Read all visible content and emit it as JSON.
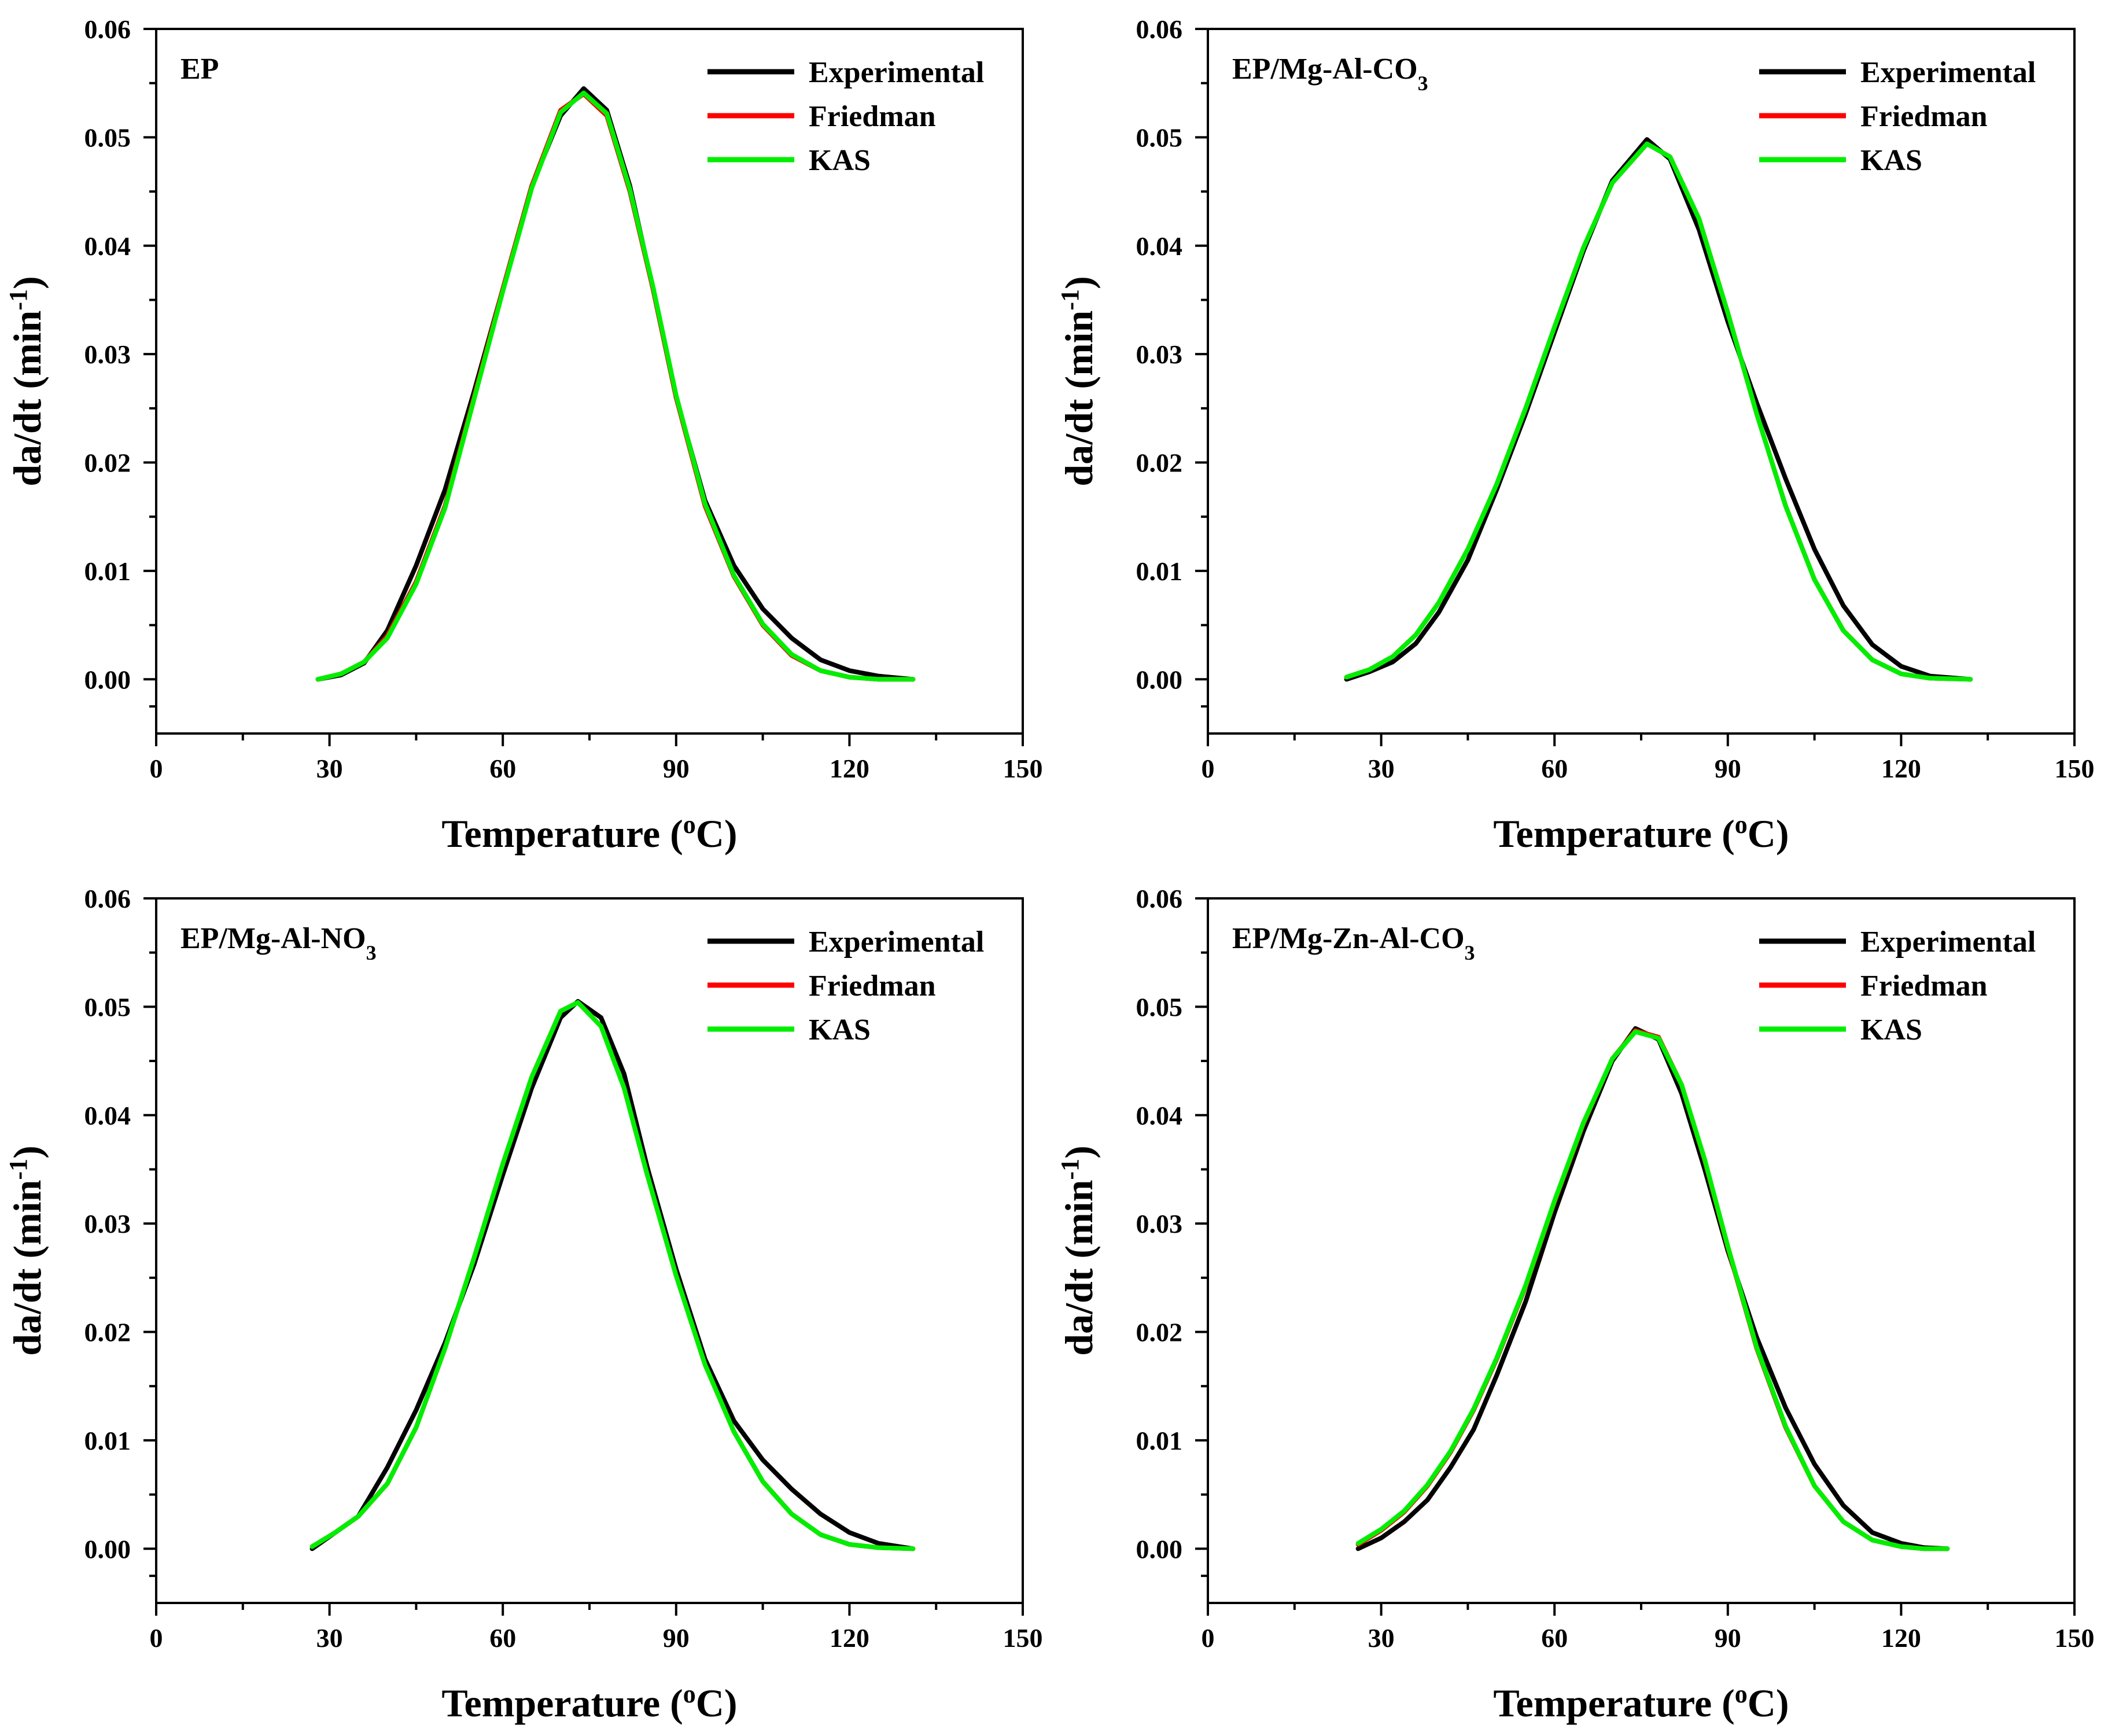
{
  "colors": {
    "Experimental": "#000000",
    "Friedman": "#ff0000",
    "KAS": "#00ee00"
  },
  "chart_data": [
    {
      "type": "line",
      "panel_label": "EP",
      "label_sub": "",
      "xlabel": "Temperature (oC)",
      "xlabel_parts": [
        "Temperature (",
        "o",
        "C)"
      ],
      "ylabel": "da/dt (min-1)",
      "ylabel_parts": [
        "da/dt (min",
        "-1",
        ")"
      ],
      "xlim": [
        0,
        150
      ],
      "ylim": [
        -0.005,
        0.06
      ],
      "xticks": [
        0,
        30,
        60,
        90,
        120,
        150
      ],
      "xtick_labels": [
        "0",
        "30",
        "60",
        "90",
        "120",
        "150"
      ],
      "yticks": [
        0,
        0.01,
        0.02,
        0.03,
        0.04,
        0.05,
        0.06
      ],
      "ytick_labels": [
        "0.00",
        "0.01",
        "0.02",
        "0.03",
        "0.04",
        "0.05",
        "0.06"
      ],
      "legend": [
        "Experimental",
        "Friedman",
        "KAS"
      ],
      "legend_position": "top-right",
      "series": [
        {
          "name": "Experimental",
          "x": [
            28,
            32,
            36,
            40,
            45,
            50,
            55,
            60,
            65,
            70,
            74,
            78,
            82,
            86,
            90,
            95,
            100,
            105,
            110,
            115,
            120,
            125,
            131
          ],
          "values": [
            0,
            0.0004,
            0.0015,
            0.0045,
            0.0105,
            0.0175,
            0.0265,
            0.036,
            0.0455,
            0.052,
            0.0545,
            0.0525,
            0.0455,
            0.036,
            0.026,
            0.0165,
            0.0105,
            0.0065,
            0.0038,
            0.0018,
            0.0008,
            0.0003,
            0
          ]
        },
        {
          "name": "Friedman",
          "x": [
            28,
            32,
            36,
            40,
            45,
            50,
            55,
            60,
            65,
            70,
            74,
            78,
            82,
            86,
            90,
            95,
            100,
            105,
            110,
            115,
            120,
            125,
            131
          ],
          "values": [
            0,
            0.0005,
            0.0016,
            0.004,
            0.009,
            0.016,
            0.026,
            0.036,
            0.0455,
            0.0525,
            0.054,
            0.052,
            0.045,
            0.036,
            0.026,
            0.016,
            0.0095,
            0.005,
            0.0022,
            0.0008,
            0.0002,
            0,
            0
          ]
        },
        {
          "name": "KAS",
          "x": [
            28,
            32,
            36,
            40,
            45,
            50,
            55,
            60,
            65,
            70,
            74,
            78,
            82,
            86,
            90,
            95,
            100,
            105,
            110,
            115,
            120,
            125,
            131
          ],
          "values": [
            0,
            0.0005,
            0.0016,
            0.0038,
            0.0088,
            0.0158,
            0.0258,
            0.0358,
            0.0453,
            0.0523,
            0.0541,
            0.0522,
            0.0452,
            0.0362,
            0.0262,
            0.0162,
            0.0096,
            0.0051,
            0.0023,
            0.0008,
            0.0002,
            0,
            0
          ]
        }
      ]
    },
    {
      "type": "line",
      "panel_label": "EP/Mg-Al-CO",
      "label_sub": "3",
      "xlabel": "Temperature (oC)",
      "xlabel_parts": [
        "Temperature (",
        "o",
        "C)"
      ],
      "ylabel": "da/dt (min-1)",
      "ylabel_parts": [
        "da/dt (min",
        "-1",
        ")"
      ],
      "xlim": [
        0,
        150
      ],
      "ylim": [
        -0.005,
        0.06
      ],
      "xticks": [
        0,
        30,
        60,
        90,
        120,
        150
      ],
      "xtick_labels": [
        "0",
        "30",
        "60",
        "90",
        "120",
        "150"
      ],
      "yticks": [
        0,
        0.01,
        0.02,
        0.03,
        0.04,
        0.05,
        0.06
      ],
      "ytick_labels": [
        "0.00",
        "0.01",
        "0.02",
        "0.03",
        "0.04",
        "0.05",
        "0.06"
      ],
      "legend": [
        "Experimental",
        "Friedman",
        "KAS"
      ],
      "legend_position": "top-right",
      "series": [
        {
          "name": "Experimental",
          "x": [
            24,
            28,
            32,
            36,
            40,
            45,
            50,
            55,
            60,
            65,
            70,
            76,
            80,
            85,
            90,
            95,
            100,
            105,
            110,
            115,
            120,
            125,
            132
          ],
          "values": [
            0,
            0.0007,
            0.0016,
            0.0033,
            0.0062,
            0.011,
            0.0175,
            0.0245,
            0.032,
            0.0395,
            0.046,
            0.0498,
            0.048,
            0.0415,
            0.033,
            0.0255,
            0.0185,
            0.012,
            0.0068,
            0.0032,
            0.0012,
            0.0003,
            0
          ]
        },
        {
          "name": "Friedman",
          "x": [
            24,
            28,
            32,
            36,
            40,
            45,
            50,
            55,
            60,
            65,
            70,
            76,
            80,
            85,
            90,
            95,
            100,
            105,
            110,
            115,
            120,
            125,
            132
          ],
          "values": [
            0.0002,
            0.0009,
            0.0021,
            0.0041,
            0.0071,
            0.012,
            0.018,
            0.025,
            0.0325,
            0.0398,
            0.0458,
            0.0494,
            0.0482,
            0.0425,
            0.0338,
            0.0245,
            0.016,
            0.0092,
            0.0045,
            0.0018,
            0.0005,
            0.0001,
            0
          ]
        },
        {
          "name": "KAS",
          "x": [
            24,
            28,
            32,
            36,
            40,
            45,
            50,
            55,
            60,
            65,
            70,
            76,
            80,
            85,
            90,
            95,
            100,
            105,
            110,
            115,
            120,
            125,
            132
          ],
          "values": [
            0.0002,
            0.0009,
            0.0021,
            0.0041,
            0.0071,
            0.012,
            0.018,
            0.025,
            0.0325,
            0.0398,
            0.0458,
            0.0494,
            0.0482,
            0.0425,
            0.0338,
            0.0245,
            0.016,
            0.0092,
            0.0045,
            0.0018,
            0.0005,
            0.0001,
            0
          ]
        }
      ]
    },
    {
      "type": "line",
      "panel_label": "EP/Mg-Al-NO",
      "label_sub": "3",
      "xlabel": "Temperature (oC)",
      "xlabel_parts": [
        "Temperature (",
        "o",
        "C)"
      ],
      "ylabel": "da/dt (min-1)",
      "ylabel_parts": [
        "da/dt (min",
        "-1",
        ")"
      ],
      "xlim": [
        0,
        150
      ],
      "ylim": [
        -0.005,
        0.06
      ],
      "xticks": [
        0,
        30,
        60,
        90,
        120,
        150
      ],
      "xtick_labels": [
        "0",
        "30",
        "60",
        "90",
        "120",
        "150"
      ],
      "yticks": [
        0,
        0.01,
        0.02,
        0.03,
        0.04,
        0.05,
        0.06
      ],
      "ytick_labels": [
        "0.00",
        "0.01",
        "0.02",
        "0.03",
        "0.04",
        "0.05",
        "0.06"
      ],
      "legend": [
        "Experimental",
        "Friedman",
        "KAS"
      ],
      "legend_position": "top-right",
      "series": [
        {
          "name": "Experimental",
          "x": [
            27,
            31,
            35,
            40,
            45,
            50,
            55,
            60,
            65,
            70,
            73,
            77,
            81,
            85,
            90,
            95,
            100,
            105,
            110,
            115,
            120,
            125,
            131
          ],
          "values": [
            0,
            0.0015,
            0.003,
            0.0075,
            0.0128,
            0.019,
            0.0262,
            0.0345,
            0.0425,
            0.049,
            0.0505,
            0.049,
            0.0438,
            0.0352,
            0.0258,
            0.0175,
            0.0118,
            0.0082,
            0.0055,
            0.0032,
            0.0015,
            0.0005,
            0
          ]
        },
        {
          "name": "Friedman",
          "x": [
            27,
            31,
            35,
            40,
            45,
            50,
            55,
            60,
            65,
            70,
            73,
            77,
            81,
            85,
            90,
            95,
            100,
            105,
            110,
            115,
            120,
            125,
            131
          ],
          "values": [
            0.0002,
            0.0015,
            0.003,
            0.006,
            0.0112,
            0.0185,
            0.0268,
            0.0355,
            0.0435,
            0.0496,
            0.0504,
            0.0482,
            0.0425,
            0.0345,
            0.0252,
            0.017,
            0.0108,
            0.0062,
            0.0032,
            0.0013,
            0.0004,
            0.0001,
            0
          ]
        },
        {
          "name": "KAS",
          "x": [
            27,
            31,
            35,
            40,
            45,
            50,
            55,
            60,
            65,
            70,
            73,
            77,
            81,
            85,
            90,
            95,
            100,
            105,
            110,
            115,
            120,
            125,
            131
          ],
          "values": [
            0.0002,
            0.0015,
            0.003,
            0.006,
            0.0112,
            0.0185,
            0.0268,
            0.0355,
            0.0435,
            0.0496,
            0.0504,
            0.0482,
            0.0425,
            0.0345,
            0.0252,
            0.017,
            0.0108,
            0.0062,
            0.0032,
            0.0013,
            0.0004,
            0.0001,
            0
          ]
        }
      ]
    },
    {
      "type": "line",
      "panel_label": "EP/Mg-Zn-Al-CO",
      "label_sub": "3",
      "xlabel": "Temperature (oC)",
      "xlabel_parts": [
        "Temperature (",
        "o",
        "C)"
      ],
      "ylabel": "da/dt (min-1)",
      "ylabel_parts": [
        "da/dt (min",
        "-1",
        ")"
      ],
      "xlim": [
        0,
        150
      ],
      "ylim": [
        -0.005,
        0.06
      ],
      "xticks": [
        0,
        30,
        60,
        90,
        120,
        150
      ],
      "xtick_labels": [
        "0",
        "30",
        "60",
        "90",
        "120",
        "150"
      ],
      "yticks": [
        0,
        0.01,
        0.02,
        0.03,
        0.04,
        0.05,
        0.06
      ],
      "ytick_labels": [
        "0.00",
        "0.01",
        "0.02",
        "0.03",
        "0.04",
        "0.05",
        "0.06"
      ],
      "legend": [
        "Experimental",
        "Friedman",
        "KAS"
      ],
      "legend_position": "top-right",
      "series": [
        {
          "name": "Experimental",
          "x": [
            26,
            30,
            34,
            38,
            42,
            46,
            50,
            55,
            60,
            65,
            70,
            74,
            78,
            82,
            86,
            90,
            95,
            100,
            105,
            110,
            115,
            120,
            124,
            128
          ],
          "values": [
            0,
            0.001,
            0.0025,
            0.0045,
            0.0075,
            0.011,
            0.016,
            0.0228,
            0.031,
            0.0385,
            0.045,
            0.048,
            0.047,
            0.042,
            0.035,
            0.0275,
            0.0195,
            0.013,
            0.0078,
            0.004,
            0.0015,
            0.0005,
            0.0001,
            0
          ]
        },
        {
          "name": "Friedman",
          "x": [
            26,
            30,
            34,
            38,
            42,
            46,
            50,
            55,
            60,
            65,
            70,
            74,
            78,
            82,
            86,
            90,
            95,
            100,
            105,
            110,
            115,
            120,
            124,
            128
          ],
          "values": [
            0.0004,
            0.0017,
            0.0034,
            0.0058,
            0.0089,
            0.0128,
            0.0175,
            0.0242,
            0.032,
            0.0392,
            0.0452,
            0.0478,
            0.0472,
            0.0428,
            0.0358,
            0.0278,
            0.0185,
            0.0112,
            0.0058,
            0.0025,
            0.0008,
            0.0002,
            0,
            0
          ]
        },
        {
          "name": "KAS",
          "x": [
            26,
            30,
            34,
            38,
            42,
            46,
            50,
            55,
            60,
            65,
            70,
            74,
            78,
            82,
            86,
            90,
            95,
            100,
            105,
            110,
            115,
            120,
            124,
            128
          ],
          "values": [
            0.0005,
            0.0018,
            0.0035,
            0.0059,
            0.009,
            0.0129,
            0.0176,
            0.0243,
            0.0321,
            0.0393,
            0.0452,
            0.0477,
            0.0471,
            0.0428,
            0.0359,
            0.0279,
            0.0186,
            0.0113,
            0.0058,
            0.0025,
            0.0008,
            0.0002,
            0,
            0
          ]
        }
      ]
    }
  ]
}
